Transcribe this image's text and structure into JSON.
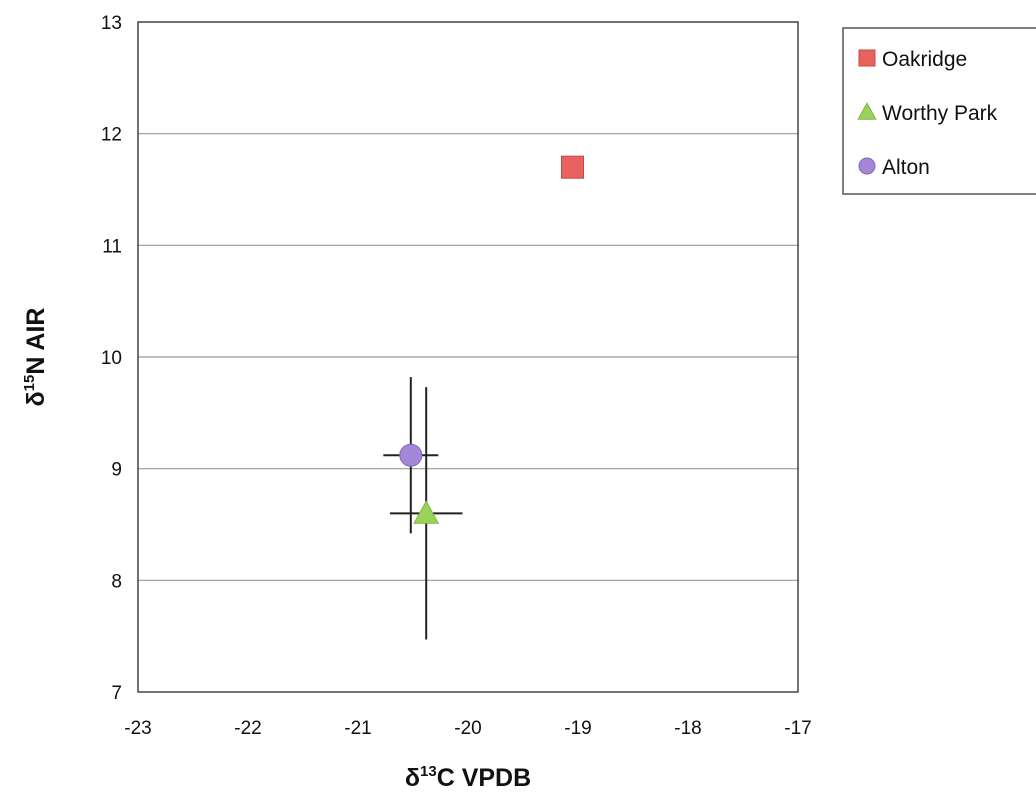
{
  "chart_data": {
    "type": "scatter",
    "title": "",
    "xlabel": {
      "prefix": "δ",
      "sup": "13",
      "main": "C VPDB"
    },
    "ylabel": {
      "prefix": "δ",
      "sup": "15",
      "main": "N AIR"
    },
    "xlim": [
      -23,
      -17
    ],
    "ylim": [
      7,
      13
    ],
    "xticks": [
      "-23",
      "-22",
      "-21",
      "-20",
      "-19",
      "-18",
      "-17"
    ],
    "yticks": [
      "7",
      "8",
      "9",
      "10",
      "11",
      "12",
      "13"
    ],
    "grid": "horizontal major gridlines",
    "legend_position": "top-right, outside plot",
    "series": [
      {
        "name": "Oakridge",
        "marker": "square",
        "color": "#e8625e",
        "x": -19.05,
        "y": 11.7,
        "xerr": 0,
        "yerr": 0
      },
      {
        "name": "Worthy Park",
        "marker": "triangle",
        "color": "#9bd35a",
        "x": -20.38,
        "y": 8.6,
        "xerr": 0.33,
        "yerr": 1.13
      },
      {
        "name": "Alton",
        "marker": "circle",
        "color": "#a487d6",
        "x": -20.52,
        "y": 9.12,
        "xerr": 0.25,
        "yerr": 0.7
      }
    ]
  }
}
